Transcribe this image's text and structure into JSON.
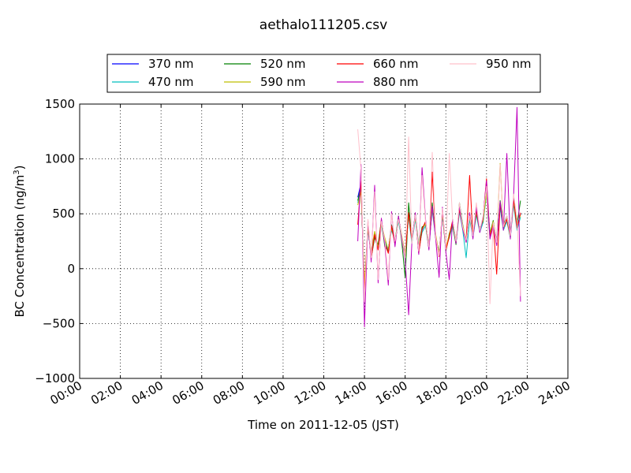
{
  "chart_data": {
    "type": "line",
    "title": "aethalo111205.csv",
    "xlabel": "Time on 2011-12-05 (JST)",
    "ylabel_main": "BC Concentration (ng/m",
    "ylabel_sup": "3",
    "ylabel_close": ")",
    "xlim": [
      0,
      24
    ],
    "ylim": [
      -1000,
      1500
    ],
    "grid": true,
    "legend_placement": "top-center",
    "xticks": [
      {
        "v": 0,
        "label": "00:00"
      },
      {
        "v": 2,
        "label": "02:00"
      },
      {
        "v": 4,
        "label": "04:00"
      },
      {
        "v": 6,
        "label": "06:00"
      },
      {
        "v": 8,
        "label": "08:00"
      },
      {
        "v": 10,
        "label": "10:00"
      },
      {
        "v": 12,
        "label": "12:00"
      },
      {
        "v": 14,
        "label": "14:00"
      },
      {
        "v": 16,
        "label": "16:00"
      },
      {
        "v": 18,
        "label": "18:00"
      },
      {
        "v": 20,
        "label": "20:00"
      },
      {
        "v": 22,
        "label": "22:00"
      },
      {
        "v": 24,
        "label": "24:00"
      }
    ],
    "yticks": [
      {
        "v": 1500,
        "label": "1500"
      },
      {
        "v": 1000,
        "label": "1000"
      },
      {
        "v": 500,
        "label": "500"
      },
      {
        "v": 0,
        "label": "0"
      },
      {
        "v": -500,
        "label": "−500"
      },
      {
        "v": -1000,
        "label": "−1000"
      }
    ],
    "series": [
      {
        "name": "370 nm",
        "color": "#0000ff",
        "x": [
          13.67,
          13.83,
          14.0,
          14.17,
          14.33,
          14.5,
          14.67,
          14.83,
          15.0,
          15.17,
          15.33,
          15.5,
          15.67,
          15.83,
          16.0,
          16.17,
          16.33,
          16.5,
          16.67,
          16.83,
          17.0,
          17.17,
          17.33,
          17.5,
          17.67,
          17.83,
          18.0,
          18.17,
          18.33,
          18.5,
          18.67,
          18.83,
          19.0,
          19.17,
          19.33,
          19.5,
          19.67,
          19.83,
          20.0,
          20.17,
          20.33,
          20.5,
          20.67,
          20.83,
          21.0,
          21.17,
          21.33,
          21.5,
          21.67
        ],
        "values": [
          650,
          780,
          -200,
          380,
          120,
          300,
          180,
          420,
          260,
          150,
          380,
          230,
          460,
          300,
          120,
          500,
          260,
          480,
          150,
          350,
          420,
          200,
          560,
          300,
          120,
          520,
          180,
          300,
          420,
          250,
          550,
          380,
          260,
          480,
          300,
          520,
          350,
          450,
          700,
          300,
          420,
          260,
          580,
          380,
          460,
          300,
          620,
          380,
          500
        ]
      },
      {
        "name": "470 nm",
        "color": "#00bfbf",
        "x": [
          13.67,
          13.83,
          14.0,
          14.17,
          14.33,
          14.5,
          14.67,
          14.83,
          15.0,
          15.17,
          15.33,
          15.5,
          15.67,
          15.83,
          16.0,
          16.17,
          16.33,
          16.5,
          16.67,
          16.83,
          17.0,
          17.17,
          17.33,
          17.5,
          17.67,
          17.83,
          18.0,
          18.17,
          18.33,
          18.5,
          18.67,
          18.83,
          19.0,
          19.17,
          19.33,
          19.5,
          19.67,
          19.83,
          20.0,
          20.17,
          20.33,
          20.5,
          20.67,
          20.83,
          21.0,
          21.17,
          21.33,
          21.5,
          21.67
        ],
        "values": [
          600,
          720,
          -150,
          350,
          150,
          320,
          200,
          400,
          240,
          180,
          350,
          260,
          430,
          280,
          150,
          470,
          230,
          450,
          180,
          330,
          390,
          230,
          530,
          280,
          150,
          490,
          200,
          280,
          390,
          230,
          520,
          350,
          100,
          450,
          280,
          490,
          330,
          420,
          670,
          280,
          400,
          240,
          550,
          350,
          430,
          280,
          590,
          350,
          470
        ]
      },
      {
        "name": "520 nm",
        "color": "#008000",
        "x": [
          13.67,
          13.83,
          14.0,
          14.17,
          14.33,
          14.5,
          14.67,
          14.83,
          15.0,
          15.17,
          15.33,
          15.5,
          15.67,
          15.83,
          16.0,
          16.17,
          16.33,
          16.5,
          16.67,
          16.83,
          17.0,
          17.17,
          17.33,
          17.5,
          17.67,
          17.83,
          18.0,
          18.17,
          18.33,
          18.5,
          18.67,
          18.83,
          19.0,
          19.17,
          19.33,
          19.5,
          19.67,
          19.83,
          20.0,
          20.17,
          20.33,
          20.5,
          20.67,
          20.83,
          21.0,
          21.17,
          21.33,
          21.5,
          21.67
        ],
        "values": [
          620,
          750,
          -180,
          400,
          100,
          280,
          220,
          440,
          200,
          160,
          400,
          250,
          480,
          250,
          -80,
          600,
          250,
          500,
          200,
          380,
          400,
          180,
          600,
          280,
          150,
          500,
          160,
          320,
          400,
          220,
          600,
          400,
          240,
          500,
          320,
          500,
          370,
          430,
          720,
          320,
          440,
          220,
          620,
          400,
          480,
          320,
          640,
          400,
          620
        ]
      },
      {
        "name": "590 nm",
        "color": "#bfbf00",
        "x": [
          13.67,
          13.83,
          14.0,
          14.17,
          14.33,
          14.5,
          14.67,
          14.83,
          15.0,
          15.17,
          15.33,
          15.5,
          15.67,
          15.83,
          16.0,
          16.17,
          16.33,
          16.5,
          16.67,
          16.83,
          17.0,
          17.17,
          17.33,
          17.5,
          17.67,
          17.83,
          18.0,
          18.17,
          18.33,
          18.5,
          18.67,
          18.83,
          19.0,
          19.17,
          19.33,
          19.5,
          19.67,
          19.83,
          20.0,
          20.17,
          20.33,
          20.5,
          20.67,
          20.83,
          21.0,
          21.17,
          21.33,
          21.5,
          21.67
        ],
        "values": [
          580,
          700,
          -120,
          360,
          160,
          340,
          190,
          410,
          280,
          170,
          370,
          240,
          450,
          310,
          130,
          490,
          270,
          470,
          170,
          360,
          410,
          210,
          550,
          310,
          130,
          510,
          190,
          310,
          430,
          260,
          560,
          390,
          270,
          470,
          310,
          510,
          360,
          440,
          690,
          310,
          430,
          250,
          960,
          390,
          470,
          310,
          610,
          390,
          490
        ]
      },
      {
        "name": "660 nm",
        "color": "#ff0000",
        "x": [
          13.67,
          13.83,
          14.0,
          14.17,
          14.33,
          14.5,
          14.67,
          14.83,
          15.0,
          15.17,
          15.33,
          15.5,
          15.67,
          15.83,
          16.0,
          16.17,
          16.33,
          16.5,
          16.67,
          16.83,
          17.0,
          17.17,
          17.33,
          17.5,
          17.67,
          17.83,
          18.0,
          18.17,
          18.33,
          18.5,
          18.67,
          18.83,
          19.0,
          19.17,
          19.33,
          19.5,
          19.67,
          19.83,
          20.0,
          20.17,
          20.33,
          20.5,
          20.67,
          20.83,
          21.0,
          21.17,
          21.33,
          21.5,
          21.67
        ],
        "values": [
          400,
          800,
          -220,
          420,
          90,
          310,
          170,
          450,
          230,
          140,
          390,
          220,
          470,
          290,
          110,
          510,
          250,
          490,
          140,
          360,
          430,
          190,
          880,
          290,
          110,
          530,
          170,
          290,
          440,
          240,
          540,
          370,
          250,
          850,
          290,
          530,
          340,
          460,
          820,
          290,
          410,
          -50,
          590,
          370,
          450,
          290,
          630,
          370,
          510
        ]
      },
      {
        "name": "880 nm",
        "color": "#bf00bf",
        "x": [
          13.67,
          13.83,
          14.0,
          14.17,
          14.33,
          14.5,
          14.67,
          14.83,
          15.0,
          15.17,
          15.33,
          15.5,
          15.67,
          15.83,
          16.0,
          16.17,
          16.33,
          16.5,
          16.67,
          16.83,
          17.0,
          17.17,
          17.33,
          17.5,
          17.67,
          17.83,
          18.0,
          18.17,
          18.33,
          18.5,
          18.67,
          18.83,
          19.0,
          19.17,
          19.33,
          19.5,
          19.67,
          19.83,
          20.0,
          20.17,
          20.33,
          20.5,
          20.67,
          20.83,
          21.0,
          21.17,
          21.33,
          21.5,
          21.67
        ],
        "values": [
          250,
          950,
          -530,
          440,
          60,
          760,
          -130,
          460,
          220,
          -150,
          520,
          200,
          480,
          270,
          80,
          -420,
          240,
          510,
          130,
          920,
          450,
          170,
          570,
          270,
          -80,
          560,
          150,
          -100,
          450,
          230,
          570,
          360,
          240,
          510,
          270,
          560,
          330,
          470,
          800,
          270,
          390,
          210,
          610,
          350,
          1050,
          270,
          650,
          1470,
          -300
        ]
      },
      {
        "name": "950 nm",
        "color": "#ffc0cb",
        "x": [
          13.67,
          13.83,
          14.0,
          14.17,
          14.33,
          14.5,
          14.67,
          14.83,
          15.0,
          15.17,
          15.33,
          15.5,
          15.67,
          15.83,
          16.0,
          16.17,
          16.33,
          16.5,
          16.67,
          16.83,
          17.0,
          17.17,
          17.33,
          17.5,
          17.67,
          17.83,
          18.0,
          18.17,
          18.33,
          18.5,
          18.67,
          18.83,
          19.0,
          19.17,
          19.33,
          19.5,
          19.67,
          19.83,
          20.0,
          20.17,
          20.33,
          20.5,
          20.67,
          20.83,
          21.0,
          21.17,
          21.33,
          21.5,
          21.67
        ],
        "values": [
          1270,
          900,
          -300,
          450,
          100,
          700,
          -100,
          430,
          260,
          -100,
          500,
          250,
          450,
          300,
          100,
          1200,
          230,
          490,
          160,
          850,
          430,
          200,
          1060,
          290,
          120,
          550,
          180,
          1050,
          440,
          250,
          600,
          380,
          260,
          480,
          300,
          600,
          350,
          480,
          750,
          -320,
          420,
          240,
          950,
          380,
          480,
          300,
          680,
          450,
          -250
        ]
      }
    ]
  }
}
